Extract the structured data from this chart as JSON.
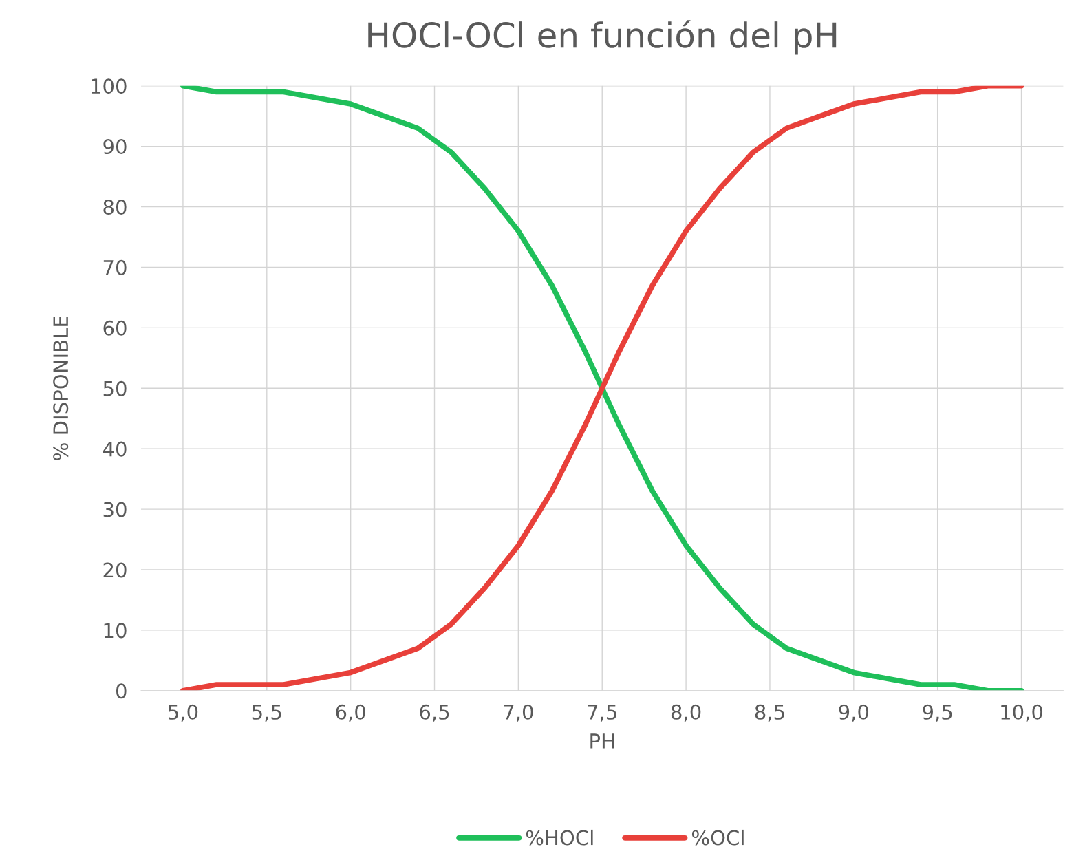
{
  "chart_data": {
    "type": "line",
    "title": "HOCl-OCl en función del pH",
    "xlabel": "PH",
    "ylabel": "% DISPONIBLE",
    "x": [
      5.0,
      5.2,
      5.4,
      5.6,
      5.8,
      6.0,
      6.2,
      6.4,
      6.6,
      6.8,
      7.0,
      7.2,
      7.4,
      7.6,
      7.8,
      8.0,
      8.2,
      8.4,
      8.6,
      8.8,
      9.0,
      9.2,
      9.4,
      9.6,
      9.8,
      10.0
    ],
    "series": [
      {
        "name": "%HOCl",
        "color": "#1fbf5a",
        "values": [
          100,
          99,
          99,
          99,
          98,
          97,
          95,
          93,
          89,
          83,
          76,
          67,
          56,
          44,
          33,
          24,
          17,
          11,
          7,
          5,
          3,
          2,
          1,
          1,
          0,
          0
        ]
      },
      {
        "name": "%OCl",
        "color": "#e8403a",
        "values": [
          0,
          1,
          1,
          1,
          2,
          3,
          5,
          7,
          11,
          17,
          24,
          33,
          44,
          56,
          67,
          76,
          83,
          89,
          93,
          95,
          97,
          98,
          99,
          99,
          100,
          100
        ]
      }
    ],
    "xlim": [
      4.75,
      10.25
    ],
    "xticks": [
      {
        "value": 5.0,
        "label": "5,0"
      },
      {
        "value": 5.5,
        "label": "5,5"
      },
      {
        "value": 6.0,
        "label": "6,0"
      },
      {
        "value": 6.5,
        "label": "6,5"
      },
      {
        "value": 7.0,
        "label": "7,0"
      },
      {
        "value": 7.5,
        "label": "7,5"
      },
      {
        "value": 8.0,
        "label": "8,0"
      },
      {
        "value": 8.5,
        "label": "8,5"
      },
      {
        "value": 9.0,
        "label": "9,0"
      },
      {
        "value": 9.5,
        "label": "9,5"
      },
      {
        "value": 10.0,
        "label": "10,0"
      }
    ],
    "ylim": [
      0,
      100
    ],
    "yticks": [
      0,
      10,
      20,
      30,
      40,
      50,
      60,
      70,
      80,
      90,
      100
    ],
    "grid": true,
    "legend": "bottom",
    "marker": "none",
    "line_style": "solid"
  }
}
